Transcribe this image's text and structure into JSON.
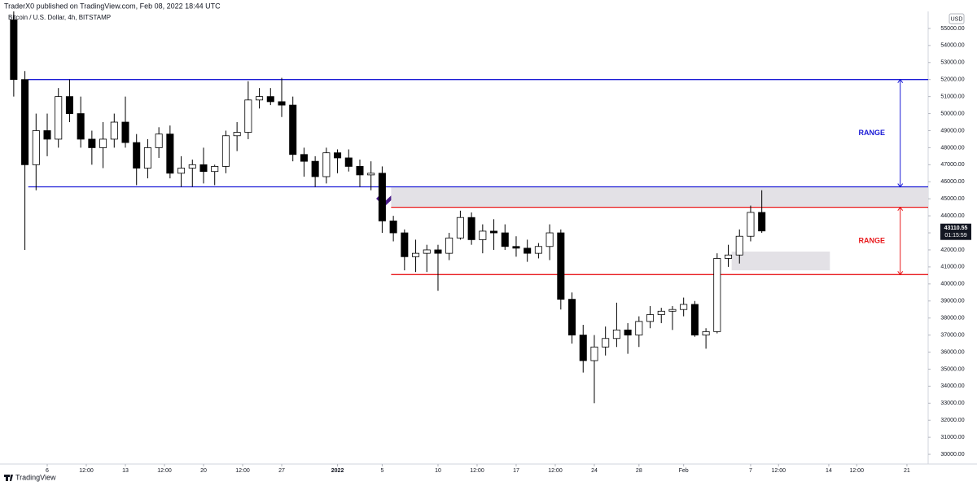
{
  "chart_data": {
    "type": "candlestick",
    "title": "TraderX0 published on TradingView.com, Feb 08, 2022 18:44 UTC",
    "subtitle": "Bitcoin / U.S. Dollar, 4h, BITSTAMP",
    "currency": "USD",
    "countdown": "01:15:59",
    "brand": "TradingView",
    "up_color": "#ffffff",
    "down_color": "#000000",
    "wick_color": "#000000",
    "grid": false,
    "x": [
      3,
      4,
      5,
      6,
      7,
      8,
      9,
      10,
      11,
      12,
      13,
      14,
      15,
      16,
      17,
      18,
      19,
      20,
      21,
      22,
      23,
      24,
      25,
      26,
      27,
      28,
      29,
      30,
      31,
      32,
      33,
      34,
      35,
      36,
      37,
      38,
      39,
      40,
      41,
      42,
      43,
      44,
      45,
      46,
      47,
      48,
      49,
      50,
      51,
      52,
      53,
      54,
      55,
      56,
      57,
      58,
      59,
      60,
      61,
      62,
      63,
      64,
      65,
      66,
      67,
      68,
      69,
      70
    ],
    "open": [
      55500,
      52000,
      47000,
      49000,
      48500,
      51000,
      50000,
      48500,
      48000,
      48500,
      49500,
      48300,
      46800,
      48000,
      48800,
      46500,
      46800,
      47000,
      46600,
      46900,
      48700,
      48900,
      50800,
      51000,
      50700,
      50500,
      47600,
      47200,
      46300,
      47700,
      47400,
      46900,
      46400,
      46500,
      43700,
      43000,
      41600,
      41800,
      42000,
      41800,
      42700,
      43900,
      42600,
      43100,
      43000,
      42200,
      42100,
      41800,
      42200,
      43000,
      39100,
      37000,
      35500,
      36300,
      36800,
      37300,
      37000,
      37800,
      38200,
      38400,
      38500,
      38800,
      37000,
      37200,
      41500,
      41700,
      42800,
      44200
    ],
    "high": [
      56000,
      52500,
      50000,
      50000,
      51500,
      52000,
      51000,
      49000,
      49500,
      50000,
      51000,
      48800,
      48500,
      49200,
      49300,
      47500,
      47300,
      48000,
      47000,
      49000,
      49500,
      51900,
      51500,
      51500,
      52100,
      51000,
      48000,
      47500,
      48000,
      47900,
      47900,
      47300,
      47200,
      46900,
      44000,
      43200,
      42600,
      42300,
      42300,
      43000,
      44300,
      44200,
      43500,
      43800,
      43500,
      42800,
      42600,
      42400,
      43500,
      43200,
      39500,
      37600,
      37000,
      37500,
      38900,
      37700,
      38100,
      38700,
      38600,
      38700,
      39200,
      39000,
      37400,
      41800,
      42300,
      43200,
      44600,
      45500
    ],
    "low": [
      51000,
      42000,
      45500,
      47500,
      48000,
      49500,
      48000,
      47000,
      46800,
      48000,
      48000,
      45800,
      46200,
      47400,
      46200,
      45700,
      45700,
      45900,
      45800,
      46500,
      47800,
      48500,
      50300,
      50500,
      49800,
      47200,
      46300,
      45700,
      45900,
      46500,
      46600,
      45700,
      45500,
      43000,
      42500,
      40800,
      40700,
      40700,
      39600,
      41400,
      42600,
      42300,
      41800,
      42000,
      42000,
      41600,
      41300,
      41500,
      41400,
      38500,
      36500,
      34800,
      33000,
      35800,
      36300,
      35900,
      36300,
      37400,
      37700,
      37300,
      38100,
      36900,
      36200,
      37100,
      41000,
      41200,
      42500,
      43000
    ],
    "close": [
      52000,
      47000,
      49000,
      48500,
      51000,
      50000,
      48500,
      48000,
      48500,
      49500,
      48300,
      46800,
      48000,
      48800,
      46500,
      46800,
      47000,
      46600,
      46900,
      48700,
      48900,
      50800,
      51000,
      50700,
      50500,
      47600,
      47200,
      46300,
      47700,
      47400,
      46900,
      46400,
      46500,
      43700,
      43000,
      41600,
      41800,
      42000,
      41800,
      42700,
      43900,
      42600,
      43100,
      43000,
      42200,
      42100,
      41800,
      42200,
      43000,
      39100,
      37000,
      35500,
      36300,
      36800,
      37300,
      37000,
      37800,
      38200,
      38400,
      38500,
      38800,
      37000,
      37200,
      41500,
      41700,
      42800,
      44200,
      43110.55
    ],
    "xlim": [
      1.77,
      84.9
    ],
    "ylim": [
      29430,
      56000
    ],
    "xticks": [
      6,
      {
        "value": 9.5,
        "label": "12:00"
      },
      13,
      {
        "value": 16.5,
        "label": "12:00"
      },
      20,
      {
        "value": 23.5,
        "label": "12:00"
      },
      27,
      {
        "value": 32,
        "label": "2022"
      },
      {
        "value": 36,
        "label": "5"
      },
      {
        "value": 41,
        "label": "10"
      },
      {
        "value": 44.5,
        "label": "12:00"
      },
      {
        "value": 48,
        "label": "17"
      },
      {
        "value": 51.5,
        "label": "12:00"
      },
      {
        "value": 55,
        "label": "24"
      },
      {
        "value": 59,
        "label": "28"
      },
      {
        "value": 63,
        "label": "Feb"
      },
      {
        "value": 69,
        "label": "7"
      },
      {
        "value": 71.5,
        "label": "12:00"
      },
      {
        "value": 76,
        "label": "14"
      },
      {
        "value": 78.5,
        "label": "12:00"
      },
      {
        "value": 83,
        "label": "21"
      }
    ],
    "yticks": [
      {
        "value": 30000,
        "label": "30000.00"
      },
      {
        "value": 31000,
        "label": "31000.00"
      },
      {
        "value": 32000,
        "label": "32000.00"
      },
      {
        "value": 33000,
        "label": "33000.00"
      },
      {
        "value": 34000,
        "label": "34000.00"
      },
      {
        "value": 35000,
        "label": "35000.00"
      },
      {
        "value": 36000,
        "label": "36000.00"
      },
      {
        "value": 37000,
        "label": "37000.00"
      },
      {
        "value": 38000,
        "label": "38000.00"
      },
      {
        "value": 39000,
        "label": "39000.00"
      },
      {
        "value": 40000,
        "label": "40000.00"
      },
      {
        "value": 41000,
        "label": "41000.00"
      },
      {
        "value": 42000,
        "label": "42000.00"
      },
      {
        "value": 43000,
        "label": "43000.00"
      },
      {
        "value": 44000,
        "label": "44000.00"
      },
      {
        "value": 45000,
        "label": "45000.00"
      },
      {
        "value": 46000,
        "label": "46000.00"
      },
      {
        "value": 47000,
        "label": "47000.00"
      },
      {
        "value": 48000,
        "label": "48000.00"
      },
      {
        "value": 49000,
        "label": "49000.00"
      },
      {
        "value": 50000,
        "label": "50000.00"
      },
      {
        "value": 51000,
        "label": "51000.00"
      },
      {
        "value": 52000,
        "label": "52000.00"
      },
      {
        "value": 53000,
        "label": "53000.00"
      },
      {
        "value": 54000,
        "label": "54000.00"
      },
      {
        "value": 55000,
        "label": "55000.00"
      }
    ],
    "annotations": {
      "levels": [
        {
          "value": 52000,
          "color": "#1a1ad6",
          "from": 4.3
        },
        {
          "value": 45700,
          "color": "#1a1ad6",
          "from": 4.3
        },
        {
          "value": 44500,
          "color": "#e8191c",
          "from": 36.8
        },
        {
          "value": 40550,
          "color": "#e8191c",
          "from": 36.8
        }
      ],
      "zones": [
        {
          "top": 45700,
          "bottom": 44500,
          "from": 36.8,
          "to": 84.9,
          "color": "#e3e1e6"
        },
        {
          "top": 41900,
          "bottom": 40800,
          "from": 67.3,
          "to": 76.1,
          "color": "#e3e1e6"
        }
      ],
      "ranges": [
        {
          "label": "RANGE",
          "color": "#1a1ad6",
          "top": 52000,
          "bottom": 45700,
          "x": 82.4
        },
        {
          "label": "RANGE",
          "color": "#e8191c",
          "top": 44500,
          "bottom": 40550,
          "x": 82.4
        }
      ]
    }
  }
}
